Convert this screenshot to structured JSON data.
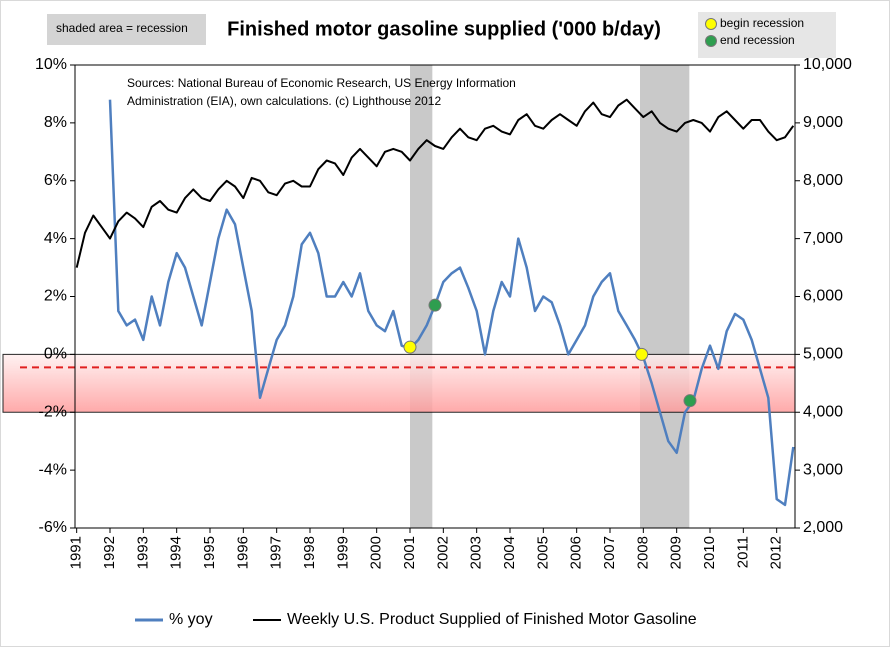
{
  "chart_data": {
    "type": "line",
    "title": "Finished motor gasoline supplied ('000 b/day)",
    "shade_note": "shaded area = recession",
    "sources": [
      "Sources: National Bureau of Economic Research, US Energy Information",
      "Administration (EIA), own calculations. (c) Lighthouse 2012"
    ],
    "x": [
      1991,
      1991.25,
      1991.5,
      1991.75,
      1992,
      1992.25,
      1992.5,
      1992.75,
      1993,
      1993.25,
      1993.5,
      1993.75,
      1994,
      1994.25,
      1994.5,
      1994.75,
      1995,
      1995.25,
      1995.5,
      1995.75,
      1996,
      1996.25,
      1996.5,
      1996.75,
      1997,
      1997.25,
      1997.5,
      1997.75,
      1998,
      1998.25,
      1998.5,
      1998.75,
      1999,
      1999.25,
      1999.5,
      1999.75,
      2000,
      2000.25,
      2000.5,
      2000.75,
      2001,
      2001.25,
      2001.5,
      2001.75,
      2002,
      2002.25,
      2002.5,
      2002.75,
      2003,
      2003.25,
      2003.5,
      2003.75,
      2004,
      2004.25,
      2004.5,
      2004.75,
      2005,
      2005.25,
      2005.5,
      2005.75,
      2006,
      2006.25,
      2006.5,
      2006.75,
      2007,
      2007.25,
      2007.5,
      2007.75,
      2008,
      2008.25,
      2008.5,
      2008.75,
      2009,
      2009.25,
      2009.5,
      2009.75,
      2010,
      2010.25,
      2010.5,
      2010.75,
      2011,
      2011.25,
      2011.5,
      2011.75,
      2012,
      2012.25,
      2012.5
    ],
    "series": [
      {
        "name": "% yoy",
        "color": "#4f7fbf",
        "axis": "y",
        "values": [
          null,
          null,
          null,
          null,
          8.8,
          1.5,
          1.0,
          1.2,
          0.5,
          2.0,
          1.0,
          2.5,
          3.5,
          3.0,
          2.0,
          1.0,
          2.5,
          4.0,
          5.0,
          4.5,
          3.0,
          1.5,
          -1.5,
          -0.5,
          0.5,
          1.0,
          2.0,
          3.8,
          4.2,
          3.5,
          2.0,
          2.0,
          2.5,
          2.0,
          2.8,
          1.5,
          1.0,
          0.8,
          1.5,
          0.3,
          0.2,
          0.5,
          1.0,
          1.7,
          2.5,
          2.8,
          3.0,
          2.3,
          1.5,
          0.0,
          1.5,
          2.5,
          2.0,
          4.0,
          3.0,
          1.5,
          2.0,
          1.8,
          1.0,
          0.0,
          0.5,
          1.0,
          2.0,
          2.5,
          2.8,
          1.5,
          1.0,
          0.5,
          -0.1,
          -1.0,
          -2.0,
          -3.0,
          -3.4,
          -2.0,
          -1.6,
          -0.5,
          0.3,
          -0.5,
          0.8,
          1.4,
          1.2,
          0.5,
          -0.5,
          -1.5,
          -5.0,
          -5.2,
          -3.2
        ]
      },
      {
        "name": "Weekly U.S. Product Supplied of Finished Motor Gasoline",
        "color": "#000000",
        "axis": "y2",
        "values": [
          6500,
          7100,
          7400,
          7200,
          7000,
          7300,
          7450,
          7350,
          7200,
          7550,
          7650,
          7500,
          7450,
          7700,
          7850,
          7700,
          7650,
          7850,
          8000,
          7900,
          7700,
          8050,
          8000,
          7800,
          7750,
          7950,
          8000,
          7900,
          7900,
          8200,
          8350,
          8300,
          8100,
          8400,
          8550,
          8400,
          8250,
          8500,
          8550,
          8500,
          8350,
          8550,
          8700,
          8600,
          8550,
          8750,
          8900,
          8750,
          8700,
          8900,
          8950,
          8850,
          8800,
          9050,
          9150,
          8950,
          8900,
          9050,
          9150,
          9050,
          8950,
          9200,
          9350,
          9150,
          9100,
          9300,
          9400,
          9250,
          9100,
          9200,
          9000,
          8900,
          8850,
          9000,
          9050,
          9000,
          8850,
          9100,
          9200,
          9050,
          8900,
          9050,
          9050,
          8850,
          8700,
          8750,
          8950
        ]
      }
    ],
    "recessions": [
      [
        2001.0,
        2001.67
      ],
      [
        2007.9,
        2009.38
      ]
    ],
    "markers": [
      {
        "name": "begin recession",
        "color": "#ffff00",
        "x": [
          2001.0,
          2007.95
        ],
        "values": [
          0.25,
          0.0
        ]
      },
      {
        "name": "end recession",
        "color": "#2e9e4f",
        "x": [
          2001.75,
          2009.4
        ],
        "values": [
          1.7,
          -1.6
        ]
      }
    ],
    "band": [
      -2,
      0
    ],
    "dashed_line": -0.45,
    "xlim": [
      1990.95,
      2012.55
    ],
    "xticks": [
      1991,
      1992,
      1993,
      1994,
      1995,
      1996,
      1997,
      1998,
      1999,
      2000,
      2001,
      2002,
      2003,
      2004,
      2005,
      2006,
      2007,
      2008,
      2009,
      2010,
      2011,
      2012
    ],
    "ylim": [
      -6,
      10
    ],
    "yticks": [
      {
        "value": -6,
        "label": "-6%"
      },
      {
        "value": -4,
        "label": "-4%"
      },
      {
        "value": -2,
        "label": "-2%"
      },
      {
        "value": 0,
        "label": "0%"
      },
      {
        "value": 2,
        "label": "2%"
      },
      {
        "value": 4,
        "label": "4%"
      },
      {
        "value": 6,
        "label": "6%"
      },
      {
        "value": 8,
        "label": "8%"
      },
      {
        "value": 10,
        "label": "10%"
      }
    ],
    "y2lim": [
      2000,
      10000
    ],
    "y2ticks": [
      {
        "value": 2000,
        "label": "2,000"
      },
      {
        "value": 3000,
        "label": "3,000"
      },
      {
        "value": 4000,
        "label": "4,000"
      },
      {
        "value": 5000,
        "label": "5,000"
      },
      {
        "value": 6000,
        "label": "6,000"
      },
      {
        "value": 7000,
        "label": "7,000"
      },
      {
        "value": 8000,
        "label": "8,000"
      },
      {
        "value": 9000,
        "label": "9,000"
      },
      {
        "value": 10000,
        "label": "10,000"
      }
    ]
  }
}
